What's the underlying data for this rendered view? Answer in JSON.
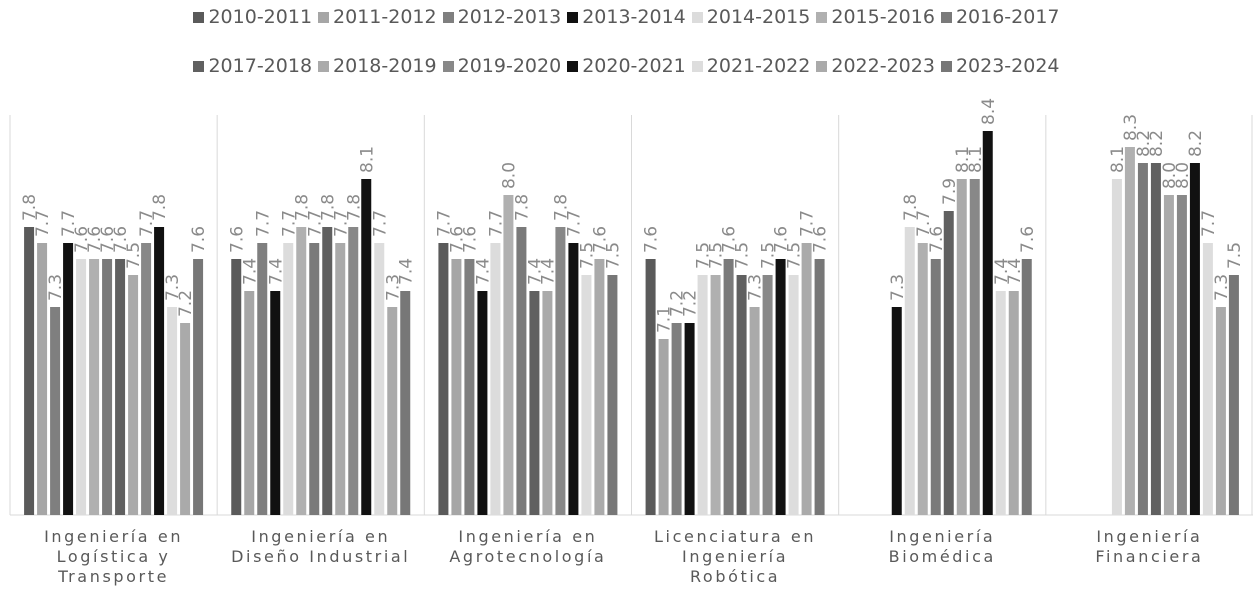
{
  "chart_data": {
    "type": "bar",
    "categories": [
      "Ingeniería en Logística y Transporte",
      "Ingeniería en Diseño Industrial",
      "Ingeniería en Agrotecnología",
      "Licenciatura en Ingeniería Robótica",
      "Ingeniería Biomédica",
      "Ingeniería Financiera"
    ],
    "ylim": [
      6.0,
      8.5
    ],
    "series": [
      {
        "name": "2010-2011",
        "color": "#5a5a5a",
        "values": [
          7.8,
          7.6,
          7.7,
          7.6,
          null,
          null
        ],
        "value_labels": [
          "7.8",
          "7.6",
          "7.7",
          "7.6",
          null,
          null
        ]
      },
      {
        "name": "2011-2012",
        "color": "#a6a6a6",
        "values": [
          7.7,
          7.4,
          7.6,
          7.1,
          null,
          null
        ],
        "value_labels": [
          "7.7",
          "7.4",
          "7.6",
          "7.1",
          null,
          null
        ]
      },
      {
        "name": "2012-2013",
        "color": "#7f7f7f",
        "values": [
          7.3,
          7.7,
          7.6,
          7.2,
          null,
          null
        ],
        "value_labels": [
          "7.3",
          "7.7",
          "7.6",
          "7.2",
          null,
          null
        ]
      },
      {
        "name": "2013-2014",
        "color": "#111111",
        "values": [
          7.7,
          7.4,
          7.4,
          7.2,
          7.3,
          null
        ],
        "value_labels": [
          "7.7",
          "7.4",
          "7.4",
          "7.2",
          "7.3",
          null
        ]
      },
      {
        "name": "2014-2015",
        "color": "#dcdcdc",
        "values": [
          7.6,
          7.7,
          7.7,
          7.5,
          7.8,
          8.1
        ],
        "value_labels": [
          "7.6",
          "7.7",
          "7.7",
          "7.5",
          "7.8",
          "8.1"
        ]
      },
      {
        "name": "2015-2016",
        "color": "#b0b0b0",
        "values": [
          7.6,
          7.8,
          8.0,
          7.5,
          7.7,
          8.3
        ],
        "value_labels": [
          "7.6",
          "7.8",
          "8.0",
          "7.5",
          "7.7",
          "8.3"
        ]
      },
      {
        "name": "2016-2017",
        "color": "#7a7a7a",
        "values": [
          7.6,
          7.7,
          7.8,
          7.6,
          7.6,
          8.2
        ],
        "value_labels": [
          "7.6",
          "7.7",
          "7.8",
          "7.6",
          "7.6",
          "8.2"
        ]
      },
      {
        "name": "2017-2018",
        "color": "#606060",
        "values": [
          7.6,
          7.8,
          7.4,
          7.5,
          7.9,
          8.2
        ],
        "value_labels": [
          "7.6",
          "7.8",
          "7.4",
          "7.5",
          "7.9",
          "8.2"
        ]
      },
      {
        "name": "2018-2019",
        "color": "#aaaaaa",
        "values": [
          7.5,
          7.7,
          7.4,
          7.3,
          8.1,
          8.0
        ],
        "value_labels": [
          "7.5",
          "7.7",
          "7.4",
          "7.3",
          "8.1",
          "8.0"
        ]
      },
      {
        "name": "2019-2020",
        "color": "#888888",
        "values": [
          7.7,
          7.8,
          7.8,
          7.5,
          8.1,
          8.0
        ],
        "value_labels": [
          "7.7",
          "7.8",
          "7.8",
          "7.5",
          "8.1",
          "8.0"
        ]
      },
      {
        "name": "2020-2021",
        "color": "#111111",
        "values": [
          7.8,
          8.1,
          7.7,
          7.6,
          8.4,
          8.2
        ],
        "value_labels": [
          "7.8",
          "8.1",
          "7.7",
          "7.6",
          "8.4",
          "8.2"
        ]
      },
      {
        "name": "2021-2022",
        "color": "#dddddd",
        "values": [
          7.3,
          7.7,
          7.5,
          7.5,
          7.4,
          7.7
        ],
        "value_labels": [
          "7.3",
          "7.7",
          "7.5",
          "7.5",
          "7.4",
          "7.7"
        ]
      },
      {
        "name": "2022-2023",
        "color": "#aaaaaa",
        "values": [
          7.2,
          7.3,
          7.6,
          7.7,
          7.4,
          7.3
        ],
        "value_labels": [
          "7.2",
          "7.3",
          "7.6",
          "7.7",
          "7.4",
          "7.3"
        ]
      },
      {
        "name": "2023-2024",
        "color": "#777777",
        "values": [
          7.6,
          7.4,
          7.5,
          7.6,
          7.6,
          7.5
        ],
        "value_labels": [
          "7.6",
          "7.4",
          "7.5",
          "7.6",
          "7.6",
          "7.5"
        ]
      }
    ]
  }
}
